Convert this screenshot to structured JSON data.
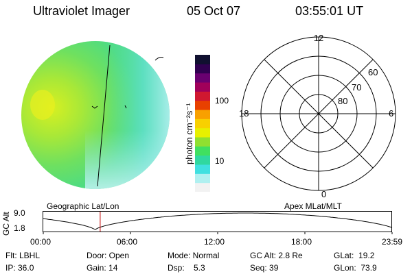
{
  "header": {
    "title": "Ultraviolet Imager",
    "date": "05 Oct 07",
    "time": "03:55:01 UT"
  },
  "colorbar": {
    "unit_label": "photon cm⁻²s⁻¹",
    "ticks": [
      "100",
      "10"
    ],
    "colors": [
      "#f2f2f2",
      "#b0f0f0",
      "#40e0e0",
      "#30d8a0",
      "#40e060",
      "#90e030",
      "#e8f000",
      "#f8d000",
      "#f8a000",
      "#e84000",
      "#d01830",
      "#a0005a",
      "#6a0070",
      "#300050",
      "#101030"
    ]
  },
  "polar": {
    "clock_labels": [
      "12",
      "18",
      "6",
      "0"
    ],
    "lat_labels": [
      "60",
      "70",
      "80"
    ]
  },
  "panel_labels": {
    "left": "Geographic Lat/Lon",
    "right": "Apex MLat/MLT"
  },
  "altitude_strip": {
    "ylabel": "GC Alt",
    "yticks": [
      "9.0",
      "1.8"
    ],
    "xticks": [
      "00:00",
      "06:00",
      "12:00",
      "18:00",
      "23:59"
    ],
    "current_time_hours": 3.9167
  },
  "status": {
    "flt": "Flt: LBHL",
    "ip": "IP: 36.0",
    "door": "Door: Open",
    "gain": "Gain: 14",
    "mode": "Mode: Normal",
    "dsp": "Dsp:    5.3",
    "gcalt": "GC Alt: 2.8 Re",
    "seq": "Seq: 39",
    "glat": "GLat:  19.2",
    "glon": "GLon:  73.9"
  }
}
